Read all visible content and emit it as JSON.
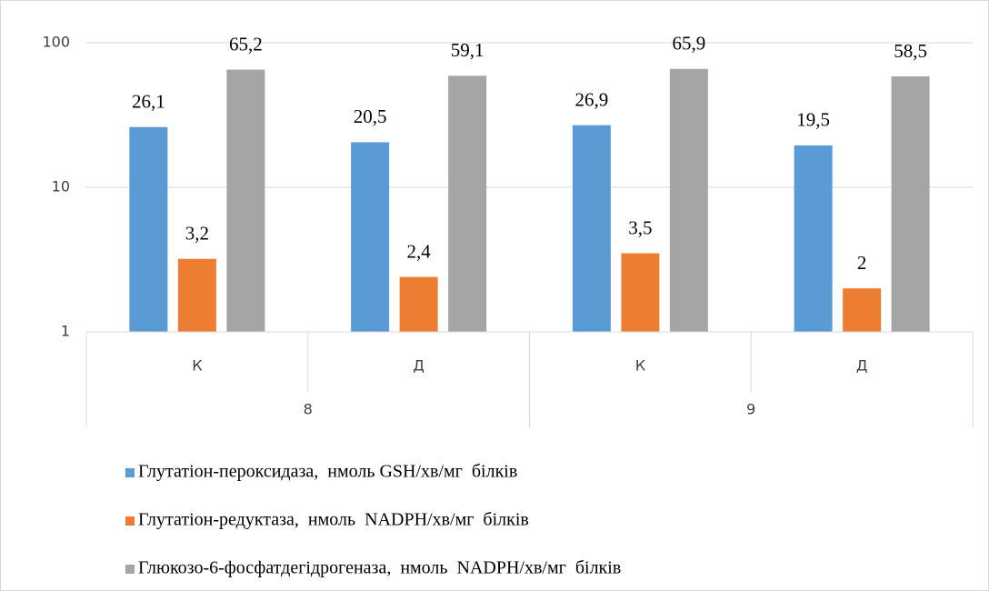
{
  "chart_data": {
    "type": "bar",
    "categories": [
      "К",
      "Д",
      "К",
      "Д"
    ],
    "category_groups": [
      "8",
      "9"
    ],
    "series": [
      {
        "name": "Глутатіон-пероксидаза,  нмоль GSH/хв/мг  білків",
        "color": "#5b9bd5",
        "values": [
          26.1,
          20.5,
          26.9,
          19.5
        ],
        "value_labels": [
          "26,1",
          "20,5",
          "26,9",
          "19,5"
        ]
      },
      {
        "name": "Глутатіон-редуктаза,  нмоль  NADPH/хв/мг  білків",
        "color": "#ed7d31",
        "values": [
          3.2,
          2.4,
          3.5,
          2
        ],
        "value_labels": [
          "3,2",
          "2,4",
          "3,5",
          "2"
        ]
      },
      {
        "name": "Глюкозо-6-фосфатдегідрогеназа,  нмоль  NADPH/хв/мг  білків",
        "color": "#a5a5a5",
        "values": [
          65.2,
          59.1,
          65.9,
          58.5
        ],
        "value_labels": [
          "65,2",
          "59,1",
          "65,9",
          "58,5"
        ]
      }
    ],
    "ylim": [
      1,
      100
    ],
    "yticks": [
      1,
      10,
      100
    ],
    "log_scale": true,
    "grid": true,
    "legend": "bottom"
  }
}
